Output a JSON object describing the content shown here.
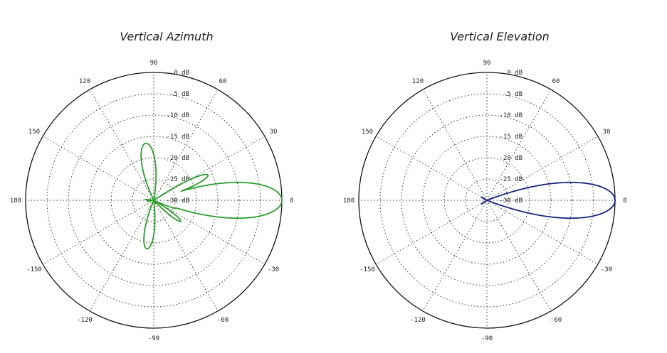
{
  "chart_data": [
    {
      "type": "polar",
      "title": "Vertical Azimuth",
      "angle_labels": [
        "0",
        "30",
        "60",
        "90",
        "120",
        "150",
        "180",
        "-150",
        "-120",
        "-90",
        "-60",
        "-30"
      ],
      "radial_labels": [
        "0 dB",
        "-5 dB",
        "-10 dB",
        "-15 dB",
        "-20 dB",
        "-25 dB",
        "-30 dB"
      ],
      "rlim_db": [
        -30,
        0
      ],
      "grid": true,
      "series": [
        {
          "color": "#2e9e2e",
          "lobes": [
            {
              "angle": 0,
              "db": 0,
              "width": 8
            },
            {
              "angle": 25,
              "db": -16,
              "width": 5
            },
            {
              "angle": 14,
              "db": -21,
              "width": 4
            },
            {
              "angle": 98,
              "db": -16.5,
              "width": 10
            },
            {
              "angle": -38,
              "db": -22,
              "width": 6
            },
            {
              "angle": -20,
              "db": -24.5,
              "width": 4
            },
            {
              "angle": -98,
              "db": -18.5,
              "width": 9
            },
            {
              "angle": 175,
              "db": -28,
              "width": 5
            },
            {
              "angle": -172,
              "db": -28.5,
              "width": 4
            }
          ]
        }
      ]
    },
    {
      "type": "polar",
      "title": "Vertical Elevation",
      "angle_labels": [
        "0",
        "30",
        "60",
        "90",
        "120",
        "150",
        "180",
        "-150",
        "-120",
        "-90",
        "-60",
        "-30"
      ],
      "radial_labels": [
        "0 dB",
        "-5 dB",
        "-10 dB",
        "-15 dB",
        "-20 dB",
        "-25 dB",
        "-30 dB"
      ],
      "rlim_db": [
        -30,
        0
      ],
      "grid": true,
      "series": [
        {
          "color": "#1a237e",
          "lobes": [
            {
              "angle": 0,
              "db": 0,
              "width": 8
            },
            {
              "angle": 10,
              "db": -25,
              "width": 5
            },
            {
              "angle": -14,
              "db": -26.5,
              "width": 4
            },
            {
              "angle": 150,
              "db": -28.5,
              "width": 6
            },
            {
              "angle": -145,
              "db": -28.5,
              "width": 6
            }
          ]
        }
      ]
    }
  ]
}
